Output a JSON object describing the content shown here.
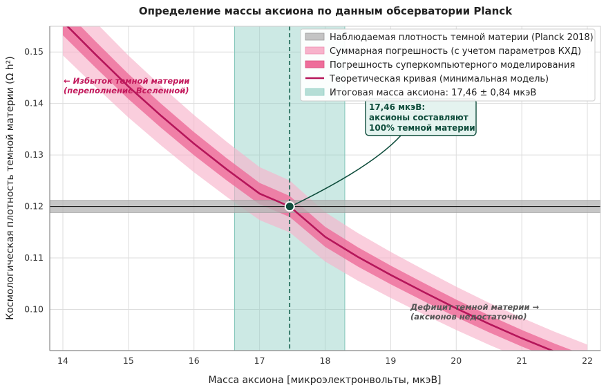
{
  "chart_data": {
    "type": "line",
    "title": "Определение массы аксиона по данным обсерватории Planck",
    "xlabel": "Масса аксиона [микроэлектронвольты, мкэВ]",
    "ylabel": "Космологическая плотность темной материи (Ω h²)",
    "xlim": [
      13.8,
      22.2
    ],
    "ylim": [
      0.092,
      0.155
    ],
    "x_ticks": [
      "14",
      "15",
      "16",
      "17",
      "18",
      "19",
      "20",
      "21",
      "22"
    ],
    "y_ticks": [
      "0.10",
      "0.11",
      "0.12",
      "0.13",
      "0.14",
      "0.15"
    ],
    "grid": true,
    "legend_position": "top-right",
    "curve": {
      "name": "Теоретическая кривая (минимальная модель)",
      "x": [
        14.0,
        14.5,
        15.0,
        15.5,
        16.0,
        16.5,
        17.0,
        17.46,
        18.0,
        18.5,
        19.0,
        19.5,
        20.0,
        20.5,
        21.0,
        21.5,
        22.0
      ],
      "y": [
        0.1559,
        0.1495,
        0.1433,
        0.1376,
        0.1322,
        0.1272,
        0.1225,
        0.12,
        0.1141,
        0.1102,
        0.1067,
        0.1034,
        0.1002,
        0.0972,
        0.0944,
        0.0918,
        0.0894
      ],
      "color": "#b5165a"
    },
    "bands": [
      {
        "name": "Суммарная погрешность (с учетом параметров КХД)",
        "rel_halfwidth": 0.042,
        "color": "#f7b3cb"
      },
      {
        "name": "Погрешность суперкомпьютерного моделирования",
        "rel_halfwidth": 0.017,
        "color": "#ee6d9a"
      }
    ],
    "observed": {
      "name": "Наблюдаемая плотность темной материи (Planck 2018)",
      "value": 0.12,
      "halfwidth": 0.0012,
      "color": "#b3b3b3"
    },
    "mass": {
      "name": "Итоговая масса аксиона: 17,46 ± 0,84 мкэВ",
      "center": 17.46,
      "err": 0.84,
      "color": "#8fcfc4",
      "line_color": "#0f5e4a"
    },
    "annotations": {
      "excess": [
        "← Избыток темной материи",
        "(переполнение Вселенной)"
      ],
      "deficit": [
        "Дефицит темной материи →",
        "(аксионов недостаточно)"
      ],
      "callout": [
        "17,46 мкэВ:",
        "аксионы составляют",
        "100% темной материи"
      ]
    },
    "colors": {
      "excess_text": "#c2185b",
      "deficit_text": "#555555"
    }
  }
}
